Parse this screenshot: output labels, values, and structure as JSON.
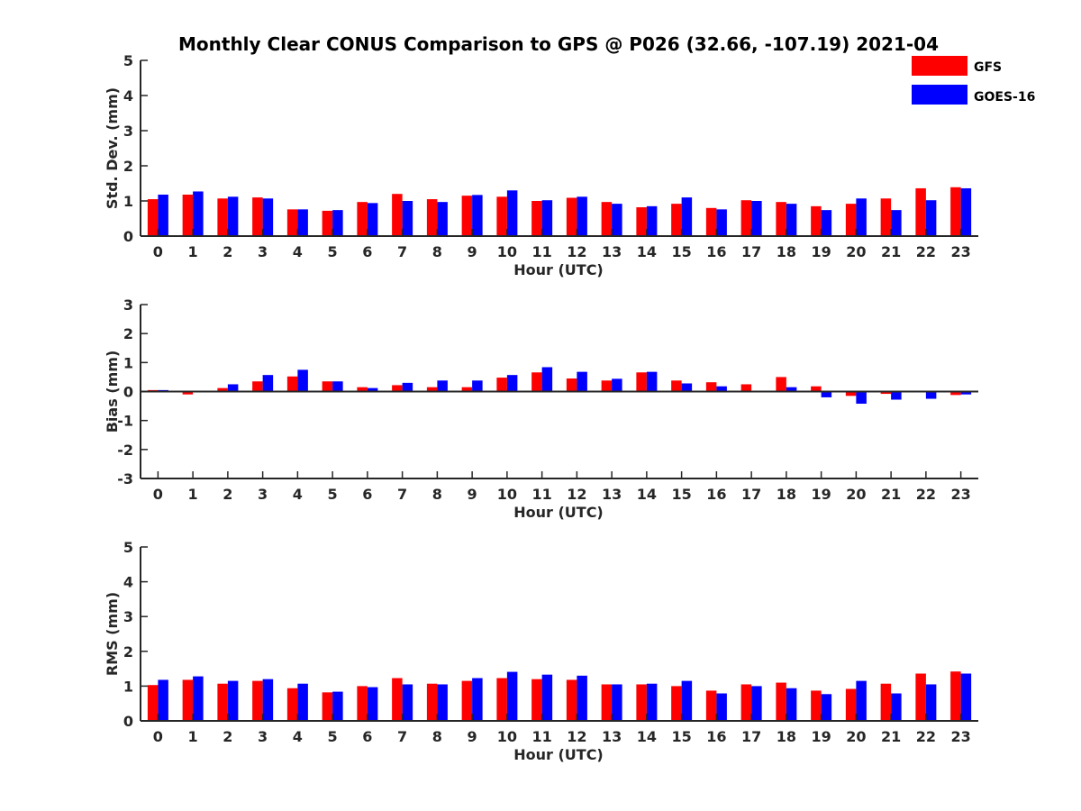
{
  "title": "Monthly Clear CONUS Comparison to GPS @ P026 (32.66, -107.19) 2021-04",
  "legend": [
    {
      "label": "GFS",
      "color": "#ff0000"
    },
    {
      "label": "GOES-16",
      "color": "#0000ff"
    }
  ],
  "chart_data": [
    {
      "type": "bar",
      "name": "std-dev",
      "ylabel": "Std. Dev. (mm)",
      "xlabel": "Hour (UTC)",
      "ylim": [
        0,
        5
      ],
      "yticks": [
        0,
        1,
        2,
        3,
        4,
        5
      ],
      "categories": [
        "0",
        "1",
        "2",
        "3",
        "4",
        "5",
        "6",
        "7",
        "8",
        "9",
        "10",
        "11",
        "12",
        "13",
        "14",
        "15",
        "16",
        "17",
        "18",
        "19",
        "20",
        "21",
        "22",
        "23"
      ],
      "series": [
        {
          "name": "GFS",
          "color": "#ff0000",
          "values": [
            1.05,
            1.18,
            1.07,
            1.1,
            0.76,
            0.72,
            0.97,
            1.2,
            1.05,
            1.15,
            1.12,
            1.0,
            1.09,
            0.97,
            0.82,
            0.92,
            0.8,
            1.02,
            0.97,
            0.85,
            0.92,
            1.07,
            1.36,
            1.39
          ]
        },
        {
          "name": "GOES-16",
          "color": "#0000ff",
          "values": [
            1.18,
            1.27,
            1.12,
            1.07,
            0.76,
            0.74,
            0.94,
            1.0,
            0.97,
            1.17,
            1.3,
            1.02,
            1.12,
            0.92,
            0.85,
            1.1,
            0.76,
            1.0,
            0.92,
            0.74,
            1.07,
            0.74,
            1.02,
            1.36
          ]
        }
      ]
    },
    {
      "type": "bar",
      "name": "bias",
      "ylabel": "Bias (mm)",
      "xlabel": "Hour (UTC)",
      "ylim": [
        -3,
        3
      ],
      "yticks": [
        -3,
        -2,
        -1,
        0,
        1,
        2,
        3
      ],
      "categories": [
        "0",
        "1",
        "2",
        "3",
        "4",
        "5",
        "6",
        "7",
        "8",
        "9",
        "10",
        "11",
        "12",
        "13",
        "14",
        "15",
        "16",
        "17",
        "18",
        "19",
        "20",
        "21",
        "22",
        "23"
      ],
      "series": [
        {
          "name": "GFS",
          "color": "#ff0000",
          "values": [
            0.05,
            -0.1,
            0.12,
            0.35,
            0.52,
            0.35,
            0.15,
            0.22,
            0.15,
            0.15,
            0.48,
            0.66,
            0.45,
            0.38,
            0.66,
            0.38,
            0.32,
            0.25,
            0.5,
            0.18,
            -0.15,
            -0.08,
            0.0,
            -0.12
          ]
        },
        {
          "name": "GOES-16",
          "color": "#0000ff",
          "values": [
            0.05,
            0.0,
            0.25,
            0.57,
            0.75,
            0.35,
            0.12,
            0.3,
            0.38,
            0.38,
            0.57,
            0.84,
            0.68,
            0.44,
            0.68,
            0.28,
            0.18,
            0.0,
            0.15,
            -0.2,
            -0.42,
            -0.28,
            -0.25,
            -0.1
          ]
        }
      ]
    },
    {
      "type": "bar",
      "name": "rms",
      "ylabel": "RMS (mm)",
      "xlabel": "Hour (UTC)",
      "ylim": [
        0,
        5
      ],
      "yticks": [
        0,
        1,
        2,
        3,
        4,
        5
      ],
      "categories": [
        "0",
        "1",
        "2",
        "3",
        "4",
        "5",
        "6",
        "7",
        "8",
        "9",
        "10",
        "11",
        "12",
        "13",
        "14",
        "15",
        "16",
        "17",
        "18",
        "19",
        "20",
        "21",
        "22",
        "23"
      ],
      "series": [
        {
          "name": "GFS",
          "color": "#ff0000",
          "values": [
            1.03,
            1.18,
            1.07,
            1.15,
            0.94,
            0.82,
            1.0,
            1.23,
            1.07,
            1.15,
            1.23,
            1.2,
            1.18,
            1.05,
            1.05,
            1.0,
            0.87,
            1.05,
            1.1,
            0.87,
            0.92,
            1.07,
            1.36,
            1.42
          ]
        },
        {
          "name": "GOES-16",
          "color": "#0000ff",
          "values": [
            1.18,
            1.28,
            1.15,
            1.2,
            1.07,
            0.84,
            0.97,
            1.05,
            1.05,
            1.23,
            1.41,
            1.33,
            1.3,
            1.05,
            1.07,
            1.15,
            0.79,
            1.0,
            0.94,
            0.77,
            1.15,
            0.79,
            1.05,
            1.36
          ]
        }
      ]
    }
  ]
}
